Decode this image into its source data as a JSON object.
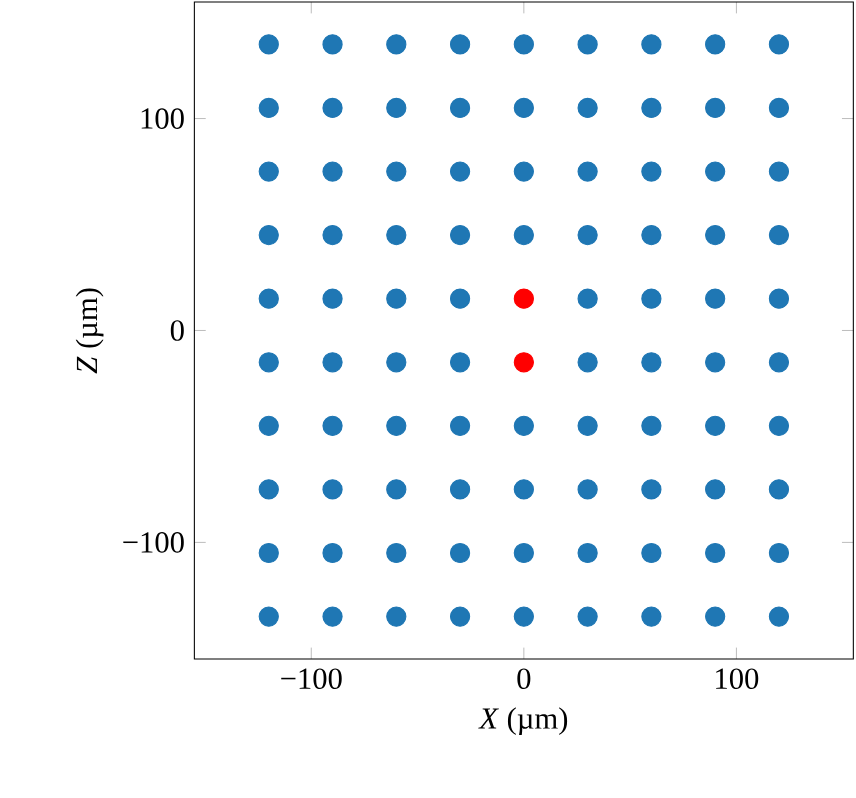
{
  "chart_data": {
    "type": "scatter",
    "xlabel": "*X* (µm)",
    "ylabel": "*Z* (µm)",
    "marker": "circle",
    "xlim": [
      -155,
      155
    ],
    "ylim": [
      -155,
      155
    ],
    "xticks": [
      {
        "value": -100,
        "label": "−100"
      },
      0,
      100
    ],
    "yticks": [
      {
        "value": -100,
        "label": "−100"
      },
      0,
      100
    ],
    "series": [
      {
        "color": "#1f77b4",
        "x": [
          -120,
          -90,
          -60,
          -30,
          0,
          30,
          60,
          90,
          120,
          -120,
          -90,
          -60,
          -30,
          0,
          30,
          60,
          90,
          120,
          -120,
          -90,
          -60,
          -30,
          0,
          30,
          60,
          90,
          120,
          -120,
          -90,
          -60,
          -30,
          0,
          30,
          60,
          90,
          120,
          -120,
          -90,
          -60,
          -30,
          30,
          60,
          90,
          120,
          -120,
          -90,
          -60,
          -30,
          30,
          60,
          90,
          120,
          -120,
          -90,
          -60,
          -30,
          0,
          30,
          60,
          90,
          120,
          -120,
          -90,
          -60,
          -30,
          0,
          30,
          60,
          90,
          120,
          -120,
          -90,
          -60,
          -30,
          0,
          30,
          60,
          90,
          120,
          -120,
          -90,
          -60,
          -30,
          0,
          30,
          60,
          90,
          120
        ],
        "values": [
          135,
          135,
          135,
          135,
          135,
          135,
          135,
          135,
          135,
          105,
          105,
          105,
          105,
          105,
          105,
          105,
          105,
          105,
          75,
          75,
          75,
          75,
          75,
          75,
          75,
          75,
          75,
          45,
          45,
          45,
          45,
          45,
          45,
          45,
          45,
          45,
          15,
          15,
          15,
          15,
          15,
          15,
          15,
          15,
          -15,
          -15,
          -15,
          -15,
          -15,
          -15,
          -15,
          -15,
          -45,
          -45,
          -45,
          -45,
          -45,
          -45,
          -45,
          -45,
          -45,
          -75,
          -75,
          -75,
          -75,
          -75,
          -75,
          -75,
          -75,
          -75,
          -105,
          -105,
          -105,
          -105,
          -105,
          -105,
          -105,
          -105,
          -105,
          -135,
          -135,
          -135,
          -135,
          -135,
          -135,
          -135,
          -135,
          -135
        ]
      },
      {
        "color": "#ff0000",
        "x": [
          0,
          0
        ],
        "values": [
          15,
          -15
        ]
      }
    ]
  }
}
